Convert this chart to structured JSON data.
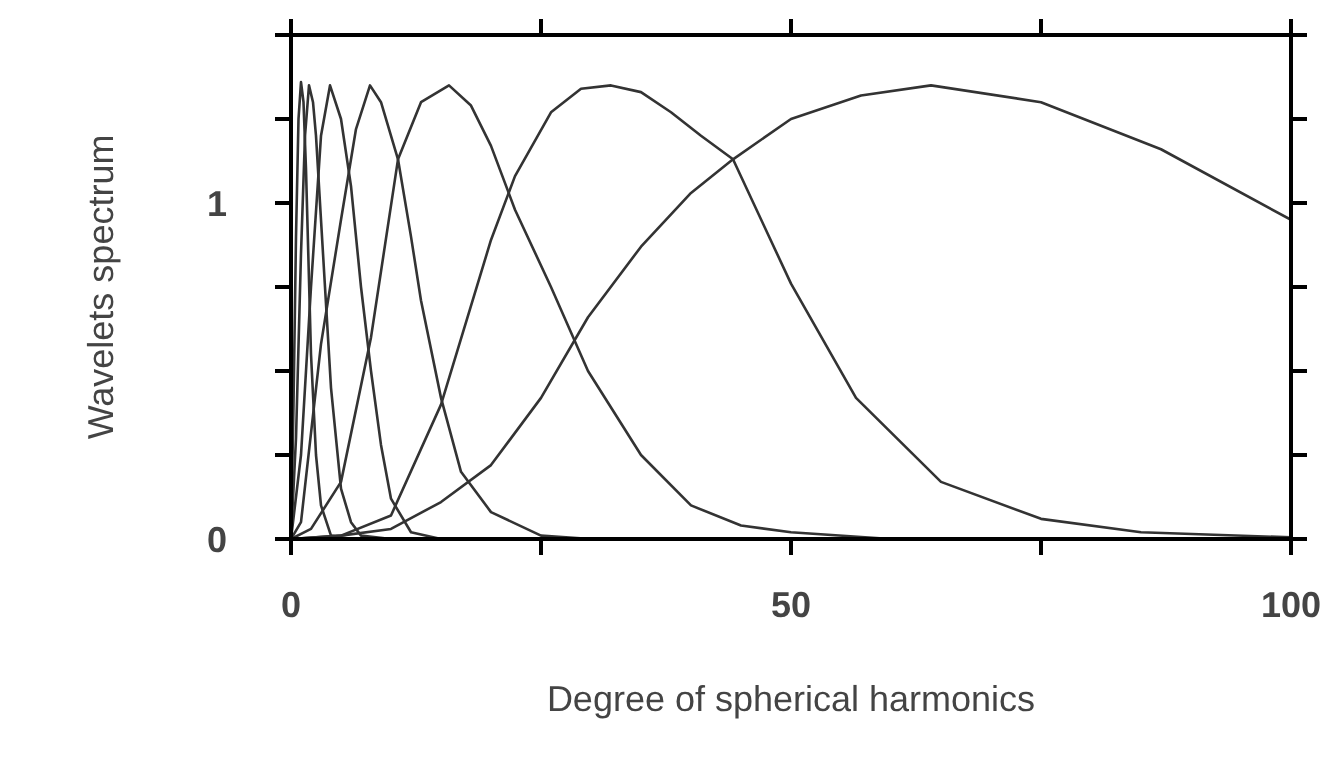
{
  "chart_data": {
    "type": "line",
    "xlabel": "Degree of spherical harmonics",
    "ylabel": "Wavelets spectrum",
    "xlim": [
      0,
      100
    ],
    "ylim": [
      0,
      1.5
    ],
    "xticks": [
      0,
      {
        "value": 25,
        "label": null
      },
      50,
      {
        "value": 75,
        "label": null
      },
      100
    ],
    "yticks": [
      0,
      {
        "value": 0.25,
        "label": null
      },
      {
        "value": 0.5,
        "label": null
      },
      {
        "value": 0.75,
        "label": null
      },
      1,
      {
        "value": 1.25,
        "label": null
      },
      {
        "value": 1.5,
        "label": null
      }
    ],
    "grid": false,
    "marker": "none",
    "line_style": "solid",
    "series": [
      {
        "color": "#333333",
        "x": [
          0,
          0.25,
          0.5,
          0.75,
          1,
          1.25,
          1.5,
          2,
          2.5,
          3,
          4,
          6,
          100
        ],
        "values": [
          0,
          0.4,
          0.9,
          1.25,
          1.36,
          1.3,
          1.1,
          0.55,
          0.25,
          0.1,
          0.01,
          0,
          0
        ]
      },
      {
        "color": "#333333",
        "x": [
          0,
          0.5,
          1,
          1.4,
          1.8,
          2.2,
          2.5,
          3,
          3.5,
          4,
          5,
          6,
          7,
          10,
          100
        ],
        "values": [
          0,
          0.3,
          0.85,
          1.2,
          1.35,
          1.3,
          1.2,
          0.95,
          0.7,
          0.45,
          0.15,
          0.05,
          0.01,
          0,
          0
        ]
      },
      {
        "color": "#333333",
        "x": [
          0,
          1,
          2,
          3,
          3.9,
          5,
          6,
          7,
          8,
          9,
          10,
          12,
          15,
          100
        ],
        "values": [
          0,
          0.25,
          0.75,
          1.2,
          1.35,
          1.25,
          1.05,
          0.75,
          0.5,
          0.28,
          0.12,
          0.02,
          0,
          0
        ]
      },
      {
        "color": "#333333",
        "x": [
          0,
          1,
          3,
          5,
          6.5,
          7.9,
          9,
          10.7,
          12,
          13,
          15,
          17,
          20,
          25,
          30,
          100
        ],
        "values": [
          0,
          0.05,
          0.58,
          0.95,
          1.22,
          1.35,
          1.3,
          1.13,
          0.9,
          0.71,
          0.42,
          0.2,
          0.08,
          0.01,
          0,
          0
        ]
      },
      {
        "color": "#333333",
        "x": [
          0,
          2,
          5,
          8,
          10.7,
          13,
          15.8,
          18,
          20,
          22.4,
          26,
          29.7,
          35,
          40,
          45,
          50,
          60,
          100
        ],
        "values": [
          0,
          0.03,
          0.17,
          0.6,
          1.13,
          1.3,
          1.35,
          1.29,
          1.17,
          0.98,
          0.75,
          0.5,
          0.25,
          0.1,
          0.04,
          0.02,
          0,
          0
        ]
      },
      {
        "color": "#333333",
        "x": [
          0,
          5,
          10,
          15,
          20,
          22.4,
          26,
          29,
          32,
          35,
          38,
          41,
          44.2,
          50,
          56.5,
          65,
          75,
          85,
          100
        ],
        "values": [
          0,
          0.01,
          0.07,
          0.4,
          0.89,
          1.08,
          1.27,
          1.34,
          1.35,
          1.33,
          1.27,
          1.2,
          1.13,
          0.76,
          0.42,
          0.17,
          0.06,
          0.02,
          0.005
        ]
      },
      {
        "color": "#333333",
        "x": [
          0,
          5,
          10,
          15,
          20,
          25,
          29.7,
          35,
          40,
          44.2,
          50,
          57,
          64,
          75,
          87,
          100
        ],
        "values": [
          0,
          0.01,
          0.03,
          0.11,
          0.22,
          0.42,
          0.66,
          0.87,
          1.03,
          1.13,
          1.25,
          1.32,
          1.35,
          1.3,
          1.16,
          0.95
        ]
      }
    ]
  }
}
